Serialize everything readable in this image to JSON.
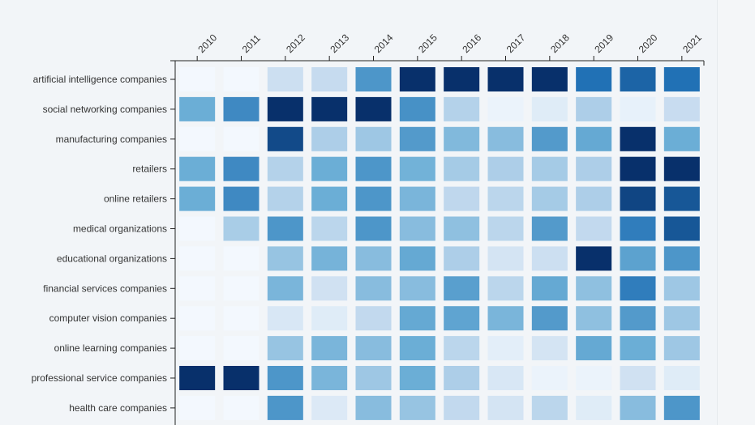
{
  "chart_data": {
    "type": "heatmap",
    "title": "",
    "xlabel": "",
    "ylabel": "",
    "x": [
      "2010",
      "2011",
      "2012",
      "2013",
      "2014",
      "2015",
      "2016",
      "2017",
      "2018",
      "2019",
      "2020",
      "2021"
    ],
    "y": [
      "artificial intelligence companies",
      "social networking companies",
      "manufacturing companies",
      "retailers",
      "online retailers",
      "medical organizations",
      "educational organizations",
      "financial services companies",
      "computer vision companies",
      "online learning companies",
      "professional service companies",
      "health care companies"
    ],
    "values": [
      [
        0.02,
        0.02,
        0.22,
        0.25,
        0.6,
        1.0,
        1.0,
        1.0,
        1.0,
        0.75,
        0.8,
        0.75
      ],
      [
        0.5,
        0.65,
        1.0,
        1.0,
        1.0,
        0.62,
        0.3,
        0.06,
        0.12,
        0.32,
        0.08,
        0.24
      ],
      [
        0.02,
        0.02,
        0.9,
        0.32,
        0.36,
        0.58,
        0.44,
        0.42,
        0.58,
        0.52,
        1.0,
        0.5
      ],
      [
        0.5,
        0.65,
        0.3,
        0.5,
        0.6,
        0.48,
        0.34,
        0.32,
        0.34,
        0.32,
        1.0,
        1.0
      ],
      [
        0.5,
        0.65,
        0.3,
        0.5,
        0.6,
        0.46,
        0.27,
        0.28,
        0.34,
        0.32,
        0.92,
        0.85
      ],
      [
        0.02,
        0.33,
        0.6,
        0.28,
        0.6,
        0.42,
        0.4,
        0.28,
        0.58,
        0.26,
        0.7,
        0.85
      ],
      [
        0.02,
        0.02,
        0.38,
        0.47,
        0.42,
        0.52,
        0.32,
        0.18,
        0.22,
        1.0,
        0.55,
        0.6
      ],
      [
        0.02,
        0.02,
        0.46,
        0.2,
        0.42,
        0.42,
        0.56,
        0.28,
        0.52,
        0.4,
        0.7,
        0.36
      ],
      [
        0.02,
        0.02,
        0.16,
        0.12,
        0.26,
        0.52,
        0.54,
        0.46,
        0.58,
        0.4,
        0.58,
        0.36
      ],
      [
        0.02,
        0.02,
        0.38,
        0.46,
        0.42,
        0.5,
        0.28,
        0.1,
        0.18,
        0.52,
        0.5,
        0.36
      ],
      [
        1.0,
        1.0,
        0.6,
        0.46,
        0.36,
        0.5,
        0.32,
        0.16,
        0.06,
        0.06,
        0.2,
        0.12
      ],
      [
        0.02,
        0.02,
        0.6,
        0.14,
        0.42,
        0.38,
        0.26,
        0.18,
        0.28,
        0.12,
        0.42,
        0.6
      ]
    ],
    "color_scale": [
      "#f7fbff",
      "#c6dbef",
      "#6baed6",
      "#2171b5",
      "#08306b"
    ],
    "grid": false,
    "legend": "none"
  }
}
